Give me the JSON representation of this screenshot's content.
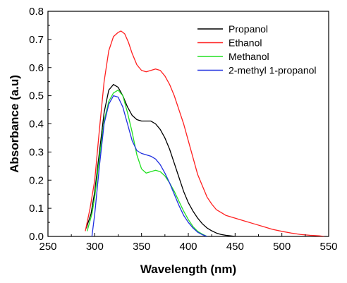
{
  "chart_data": {
    "type": "line",
    "xlabel": "Wavelength (nm)",
    "ylabel": "Absorbance (a.u)",
    "xlim": [
      250,
      550
    ],
    "ylim": [
      0.0,
      0.8
    ],
    "x_ticks": [
      250,
      300,
      350,
      400,
      450,
      500,
      550
    ],
    "x_tick_labels": [
      "250",
      "300",
      "350",
      "400",
      "450",
      "500",
      "550"
    ],
    "y_ticks": [
      0.0,
      0.1,
      0.2,
      0.3,
      0.4,
      0.5,
      0.6,
      0.7,
      0.8
    ],
    "y_tick_labels": [
      "0.0",
      "0.1",
      "0.2",
      "0.3",
      "0.4",
      "0.5",
      "0.6",
      "0.7",
      "0.8"
    ],
    "legend_position": "top-right",
    "grid": false,
    "series": [
      {
        "name": "Propanol",
        "color": "#000000",
        "points": [
          [
            291,
            0.03
          ],
          [
            296,
            0.08
          ],
          [
            300,
            0.16
          ],
          [
            305,
            0.3
          ],
          [
            310,
            0.44
          ],
          [
            315,
            0.52
          ],
          [
            320,
            0.54
          ],
          [
            325,
            0.53
          ],
          [
            330,
            0.5
          ],
          [
            335,
            0.46
          ],
          [
            340,
            0.43
          ],
          [
            345,
            0.415
          ],
          [
            350,
            0.41
          ],
          [
            355,
            0.41
          ],
          [
            360,
            0.41
          ],
          [
            365,
            0.4
          ],
          [
            370,
            0.38
          ],
          [
            375,
            0.35
          ],
          [
            380,
            0.31
          ],
          [
            385,
            0.26
          ],
          [
            390,
            0.21
          ],
          [
            395,
            0.16
          ],
          [
            400,
            0.12
          ],
          [
            405,
            0.09
          ],
          [
            410,
            0.065
          ],
          [
            415,
            0.045
          ],
          [
            420,
            0.03
          ],
          [
            425,
            0.02
          ],
          [
            430,
            0.012
          ],
          [
            435,
            0.007
          ],
          [
            440,
            0.004
          ],
          [
            445,
            0.002
          ],
          [
            450,
            0.0
          ]
        ]
      },
      {
        "name": "Ethanol",
        "color": "#ff2020",
        "points": [
          [
            290,
            0.02
          ],
          [
            295,
            0.1
          ],
          [
            300,
            0.2
          ],
          [
            305,
            0.38
          ],
          [
            310,
            0.55
          ],
          [
            315,
            0.66
          ],
          [
            320,
            0.71
          ],
          [
            325,
            0.725
          ],
          [
            328,
            0.73
          ],
          [
            332,
            0.72
          ],
          [
            336,
            0.69
          ],
          [
            340,
            0.65
          ],
          [
            345,
            0.61
          ],
          [
            350,
            0.59
          ],
          [
            355,
            0.585
          ],
          [
            360,
            0.59
          ],
          [
            365,
            0.595
          ],
          [
            370,
            0.59
          ],
          [
            375,
            0.57
          ],
          [
            380,
            0.54
          ],
          [
            385,
            0.5
          ],
          [
            390,
            0.45
          ],
          [
            395,
            0.4
          ],
          [
            400,
            0.34
          ],
          [
            405,
            0.28
          ],
          [
            410,
            0.22
          ],
          [
            415,
            0.18
          ],
          [
            420,
            0.14
          ],
          [
            425,
            0.115
          ],
          [
            430,
            0.095
          ],
          [
            435,
            0.085
          ],
          [
            440,
            0.075
          ],
          [
            450,
            0.065
          ],
          [
            460,
            0.055
          ],
          [
            470,
            0.045
          ],
          [
            480,
            0.035
          ],
          [
            490,
            0.025
          ],
          [
            500,
            0.018
          ],
          [
            510,
            0.012
          ],
          [
            520,
            0.007
          ],
          [
            530,
            0.004
          ],
          [
            540,
            0.002
          ],
          [
            545,
            0.0
          ]
        ]
      },
      {
        "name": "Methanol",
        "color": "#22e022",
        "points": [
          [
            292,
            0.02
          ],
          [
            297,
            0.08
          ],
          [
            300,
            0.14
          ],
          [
            305,
            0.28
          ],
          [
            310,
            0.41
          ],
          [
            315,
            0.48
          ],
          [
            320,
            0.51
          ],
          [
            325,
            0.52
          ],
          [
            330,
            0.5
          ],
          [
            335,
            0.44
          ],
          [
            340,
            0.37
          ],
          [
            345,
            0.29
          ],
          [
            350,
            0.24
          ],
          [
            355,
            0.225
          ],
          [
            360,
            0.23
          ],
          [
            365,
            0.235
          ],
          [
            370,
            0.23
          ],
          [
            375,
            0.215
          ],
          [
            380,
            0.19
          ],
          [
            385,
            0.16
          ],
          [
            390,
            0.125
          ],
          [
            395,
            0.09
          ],
          [
            400,
            0.06
          ],
          [
            405,
            0.035
          ],
          [
            410,
            0.018
          ],
          [
            415,
            0.008
          ],
          [
            420,
            0.0
          ]
        ]
      },
      {
        "name": "2-methyl 1-propanol",
        "color": "#2030e0",
        "points": [
          [
            297,
            0.0
          ],
          [
            300,
            0.08
          ],
          [
            305,
            0.25
          ],
          [
            310,
            0.4
          ],
          [
            315,
            0.47
          ],
          [
            320,
            0.5
          ],
          [
            325,
            0.495
          ],
          [
            330,
            0.46
          ],
          [
            335,
            0.4
          ],
          [
            340,
            0.34
          ],
          [
            345,
            0.305
          ],
          [
            350,
            0.295
          ],
          [
            355,
            0.29
          ],
          [
            360,
            0.285
          ],
          [
            365,
            0.275
          ],
          [
            370,
            0.255
          ],
          [
            375,
            0.225
          ],
          [
            380,
            0.19
          ],
          [
            385,
            0.15
          ],
          [
            390,
            0.11
          ],
          [
            395,
            0.075
          ],
          [
            400,
            0.05
          ],
          [
            405,
            0.03
          ],
          [
            410,
            0.015
          ],
          [
            415,
            0.006
          ],
          [
            420,
            0.0
          ]
        ]
      }
    ]
  }
}
